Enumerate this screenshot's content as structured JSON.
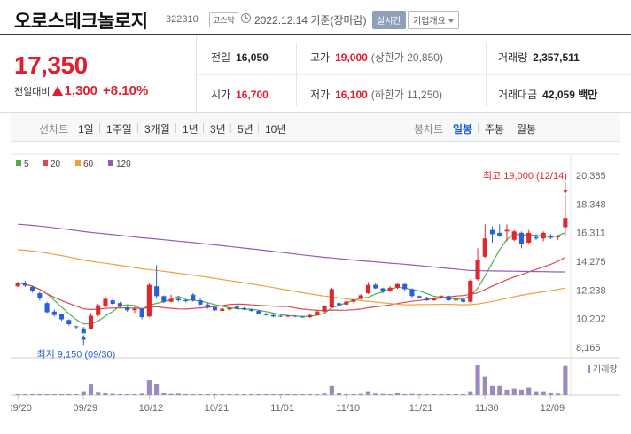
{
  "header": {
    "name": "오로스테크놀로지",
    "code": "322310",
    "market": "코스닥",
    "date": "2022.12.14 기준(장마감)",
    "realtime_label": "실시간",
    "company_label": "기업개요"
  },
  "price": {
    "current": "17,350",
    "change_label": "전일대비",
    "change_amt": "1,300",
    "change_pct": "+8.10%"
  },
  "stats": {
    "prev": {
      "label": "전일",
      "value": "16,050"
    },
    "high": {
      "label": "고가",
      "value": "19,000",
      "sub": "(상한가 20,850)"
    },
    "volume": {
      "label": "거래량",
      "value": "2,357,511"
    },
    "open": {
      "label": "시가",
      "value": "16,700"
    },
    "low": {
      "label": "저가",
      "value": "16,100",
      "sub": "(하한가 11,250)"
    },
    "amount": {
      "label": "거래대금",
      "value": "42,059 백만"
    }
  },
  "periods": {
    "line_label": "선차트",
    "line_items": [
      "1일",
      "1주일",
      "3개월",
      "1년",
      "3년",
      "5년",
      "10년"
    ],
    "candle_label": "봉차트",
    "candle_items": [
      "일봉",
      "주봉",
      "월봉"
    ],
    "active_candle": "일봉"
  },
  "chart_data": {
    "type": "candlestick",
    "legend": [
      {
        "name": "5",
        "color": "#4caf50"
      },
      {
        "name": "20",
        "color": "#e0474c"
      },
      {
        "name": "60",
        "color": "#f0a040"
      },
      {
        "name": "120",
        "color": "#9b59b6"
      }
    ],
    "y_ticks": [
      "20,385",
      "18,348",
      "16,311",
      "14,275",
      "12,238",
      "10,202",
      "8,165"
    ],
    "ylim": [
      8165,
      20385
    ],
    "x_ticks": [
      "09/20",
      "09/29",
      "10/12",
      "10/21",
      "11/01",
      "11/10",
      "11/21",
      "11/30",
      "12/09"
    ],
    "high_annotation": "최고 19,000 (12/14)",
    "low_annotation": "최저 9,150 (09/30)",
    "volume_label": "거래량",
    "candles": [
      [
        12500,
        12750,
        12800,
        12450
      ],
      [
        12750,
        12550,
        12900,
        12450
      ],
      [
        12450,
        12200,
        12550,
        12050
      ],
      [
        12000,
        11650,
        12100,
        11500
      ],
      [
        11300,
        10650,
        11400,
        10600
      ],
      [
        10700,
        10450,
        10850,
        10350
      ],
      [
        10500,
        10150,
        10550,
        10050
      ],
      [
        10100,
        9800,
        10150,
        9700
      ],
      [
        9650,
        9600,
        9700,
        9450
      ],
      [
        9500,
        9150,
        9600,
        9150
      ],
      [
        9450,
        10400,
        10600,
        9400
      ],
      [
        10450,
        11150,
        11250,
        10350
      ],
      [
        11050,
        11600,
        11800,
        10950
      ],
      [
        11500,
        11250,
        11650,
        11150
      ],
      [
        11300,
        11100,
        11400,
        11000
      ],
      [
        11000,
        10800,
        11100,
        10700
      ],
      [
        10800,
        10900,
        11100,
        10600
      ],
      [
        10900,
        10300,
        10950,
        10150
      ],
      [
        10350,
        12600,
        12700,
        10300
      ],
      [
        12500,
        11800,
        14000,
        11650
      ],
      [
        11800,
        11400,
        11850,
        11300
      ],
      [
        11400,
        11600,
        11900,
        11350
      ],
      [
        11600,
        11500,
        11800,
        11400
      ],
      [
        11500,
        11450,
        11600,
        11350
      ],
      [
        11900,
        11500,
        12000,
        11400
      ],
      [
        11500,
        11200,
        11650,
        11150
      ],
      [
        11200,
        11000,
        11300,
        10900
      ],
      [
        11000,
        10800,
        11050,
        10750
      ],
      [
        10750,
        10900,
        10950,
        10700
      ],
      [
        10850,
        10950,
        11000,
        10800
      ],
      [
        11050,
        10900,
        11150,
        10850
      ],
      [
        10950,
        10850,
        11000,
        10800
      ],
      [
        10850,
        10750,
        10900,
        10700
      ],
      [
        10750,
        10550,
        10800,
        10500
      ],
      [
        10550,
        10450,
        10600,
        10400
      ],
      [
        10450,
        10350,
        10500,
        10300
      ],
      [
        10400,
        10350,
        10450,
        10300
      ],
      [
        10350,
        10400,
        10450,
        10300
      ],
      [
        10400,
        10350,
        10450,
        10300
      ],
      [
        10350,
        10300,
        10400,
        10250
      ],
      [
        10300,
        10450,
        10500,
        10250
      ],
      [
        10450,
        10700,
        10750,
        10400
      ],
      [
        10700,
        11100,
        11150,
        10650
      ],
      [
        11000,
        12300,
        12400,
        10950
      ],
      [
        11300,
        11150,
        11400,
        11050
      ],
      [
        11200,
        11400,
        11450,
        11150
      ],
      [
        11400,
        11550,
        11600,
        11300
      ],
      [
        11600,
        11850,
        11950,
        11550
      ],
      [
        12000,
        12600,
        12800,
        11950
      ],
      [
        12600,
        12350,
        12700,
        12300
      ],
      [
        12350,
        12150,
        12400,
        12000
      ],
      [
        12150,
        12400,
        12500,
        12100
      ],
      [
        12400,
        12650,
        12700,
        12300
      ],
      [
        12650,
        12300,
        12700,
        12200
      ],
      [
        12300,
        11800,
        12350,
        11700
      ],
      [
        11800,
        11700,
        11850,
        11650
      ],
      [
        11700,
        11500,
        11750,
        11450
      ],
      [
        11500,
        11650,
        11700,
        11450
      ],
      [
        11650,
        11800,
        11850,
        11600
      ],
      [
        11800,
        11500,
        11850,
        11450
      ],
      [
        11500,
        11550,
        11600,
        11450
      ],
      [
        11550,
        11400,
        11600,
        11350
      ],
      [
        11400,
        12900,
        13000,
        11350
      ],
      [
        13000,
        14400,
        15200,
        12900
      ],
      [
        14600,
        15900,
        16900,
        14500
      ],
      [
        16500,
        16200,
        16750,
        15600
      ],
      [
        16300,
        16100,
        16900,
        16000
      ],
      [
        16400,
        16500,
        16900,
        15700
      ],
      [
        15800,
        16400,
        16500,
        15700
      ],
      [
        16300,
        15500,
        16400,
        15200
      ],
      [
        15600,
        16300,
        16500,
        15500
      ],
      [
        16000,
        15900,
        16200,
        15800
      ],
      [
        15900,
        16300,
        16400,
        15700
      ],
      [
        16100,
        15950,
        16200,
        15850
      ],
      [
        16050,
        16050,
        16100,
        15800
      ],
      [
        16700,
        17350,
        19000,
        16100
      ]
    ],
    "volumes": [
      0.02,
      0.02,
      0.01,
      0.03,
      0.03,
      0.02,
      0.02,
      0.01,
      0.02,
      0.1,
      0.35,
      0.08,
      0.06,
      0.04,
      0.03,
      0.03,
      0.02,
      0.05,
      0.5,
      0.38,
      0.06,
      0.04,
      0.05,
      0.03,
      0.03,
      0.02,
      0.02,
      0.02,
      0.02,
      0.01,
      0.01,
      0.01,
      0.02,
      0.02,
      0.02,
      0.01,
      0.01,
      0.01,
      0.01,
      0.01,
      0.02,
      0.03,
      0.05,
      0.3,
      0.06,
      0.03,
      0.02,
      0.04,
      0.1,
      0.05,
      0.04,
      0.03,
      0.06,
      0.03,
      0.04,
      0.03,
      0.02,
      0.02,
      0.02,
      0.02,
      0.02,
      0.02,
      0.1,
      1.0,
      0.6,
      0.3,
      0.3,
      0.18,
      0.22,
      0.18,
      0.25,
      0.1,
      0.1,
      0.06,
      0.05,
      0.98
    ]
  }
}
